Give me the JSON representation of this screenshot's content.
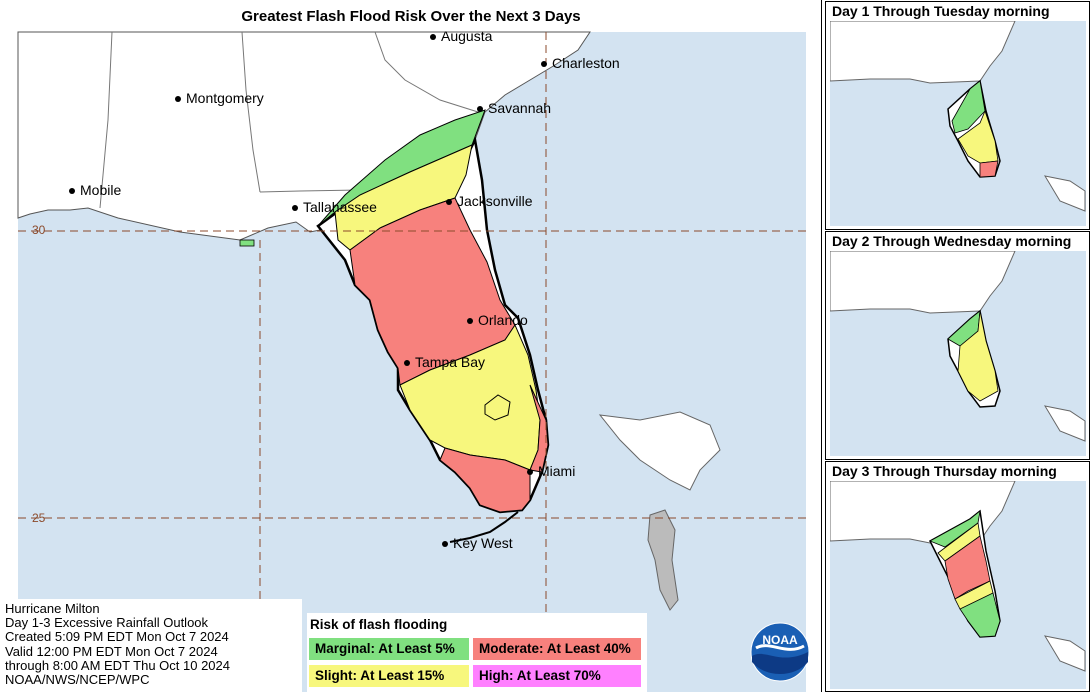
{
  "title": "Greatest Flash Flood Risk Over the Next 3 Days",
  "colors": {
    "water": "#d3e3f1",
    "land": "#ffffff",
    "marginal": "#80e080",
    "slight": "#f7f77d",
    "moderate": "#f7817d",
    "high": "#ff80ff"
  },
  "cities": [
    {
      "name": "Augusta"
    },
    {
      "name": "Charleston"
    },
    {
      "name": "Montgomery"
    },
    {
      "name": "Savannah"
    },
    {
      "name": "Mobile"
    },
    {
      "name": "Tallahassee"
    },
    {
      "name": "Jacksonville"
    },
    {
      "name": "Orlando"
    },
    {
      "name": "Tampa Bay"
    },
    {
      "name": "Miami"
    },
    {
      "name": "Key West"
    }
  ],
  "latitudes": [
    "30",
    "25"
  ],
  "info": {
    "line1": "Hurricane Milton",
    "line2": "Day 1-3 Excessive Rainfall Outlook",
    "line3": "Created 5:09 PM EDT Mon Oct 7 2024",
    "line4": "Valid 12:00 PM EDT Mon Oct 7 2024",
    "line5": "through 8:00 AM EDT Thu Oct 10 2024",
    "line6": "NOAA/NWS/NCEP/WPC"
  },
  "legend": {
    "title": "Risk of flash flooding",
    "marginal": "Marginal: At Least 5%",
    "slight": "Slight: At Least 15%",
    "moderate": "Moderate: At Least 40%",
    "high": "High: At Least 70%"
  },
  "logo_text": "NOAA",
  "panels": [
    {
      "title": "Day 1 Through Tuesday morning"
    },
    {
      "title": "Day 2 Through Wednesday morning"
    },
    {
      "title": "Day 3 Through Thursday morning"
    }
  ]
}
